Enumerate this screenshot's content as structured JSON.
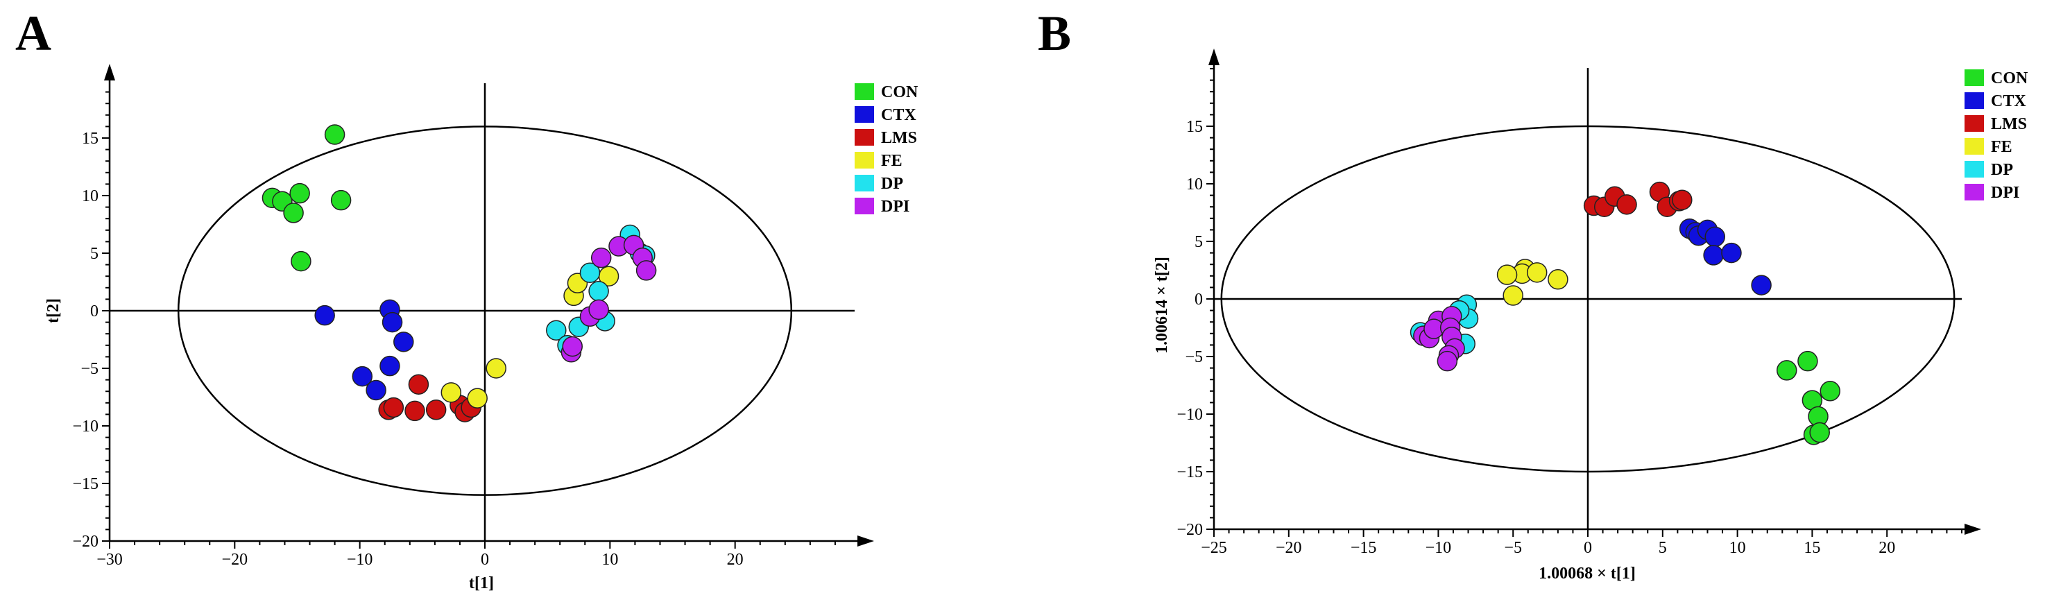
{
  "chart_data": [
    {
      "panel": "A",
      "type": "scatter",
      "title": "",
      "xlabel": "t[1]",
      "ylabel": "t[2]",
      "xlim": [
        -30,
        30
      ],
      "ylim": [
        -20,
        20
      ],
      "xticks": [
        -30,
        -20,
        -10,
        0,
        10,
        20
      ],
      "yticks": [
        -20,
        -15,
        -10,
        -5,
        0,
        5,
        10,
        15
      ],
      "ellipse": {
        "rx": 24.5,
        "ry": 16
      },
      "legend_position": "top-right",
      "series": [
        {
          "name": "CON",
          "color": "#22dd22",
          "points": [
            [
              -12,
              15.3
            ],
            [
              -17,
              9.8
            ],
            [
              -16.2,
              9.5
            ],
            [
              -14.8,
              10.2
            ],
            [
              -15.3,
              8.5
            ],
            [
              -11.5,
              9.6
            ],
            [
              -14.7,
              4.3
            ]
          ]
        },
        {
          "name": "CTX",
          "color": "#1010dd",
          "points": [
            [
              -12.8,
              -0.4
            ],
            [
              -7.6,
              0.1
            ],
            [
              -7.4,
              -1
            ],
            [
              -6.5,
              -2.7
            ],
            [
              -7.6,
              -4.8
            ],
            [
              -9.8,
              -5.7
            ],
            [
              -8.7,
              -6.9
            ]
          ]
        },
        {
          "name": "LMS",
          "color": "#cc1010",
          "points": [
            [
              -7.7,
              -8.6
            ],
            [
              -7.3,
              -8.4
            ],
            [
              -5.6,
              -8.7
            ],
            [
              -5.3,
              -6.4
            ],
            [
              -3.9,
              -8.6
            ],
            [
              -2,
              -8.2
            ],
            [
              -1.6,
              -8.8
            ],
            [
              -1.1,
              -8.4
            ]
          ]
        },
        {
          "name": "FE",
          "color": "#eeee22",
          "points": [
            [
              -2.7,
              -7.1
            ],
            [
              -0.6,
              -7.6
            ],
            [
              0.9,
              -5
            ],
            [
              7.1,
              1.3
            ],
            [
              7.4,
              2.4
            ],
            [
              9.9,
              3
            ]
          ]
        },
        {
          "name": "DP",
          "color": "#22e2ee",
          "points": [
            [
              5.7,
              -1.7
            ],
            [
              6.6,
              -3
            ],
            [
              7.5,
              -1.4
            ],
            [
              8.4,
              3.3
            ],
            [
              9.1,
              1.7
            ],
            [
              9.6,
              -0.9
            ],
            [
              11.6,
              6.6
            ],
            [
              12.4,
              5
            ],
            [
              12.8,
              4.8
            ]
          ]
        },
        {
          "name": "DPI",
          "color": "#bb22ee",
          "points": [
            [
              6.9,
              -3.6
            ],
            [
              7,
              -3.1
            ],
            [
              8.4,
              -0.5
            ],
            [
              9.1,
              0.1
            ],
            [
              9.3,
              4.6
            ],
            [
              10.7,
              5.6
            ],
            [
              11.9,
              5.7
            ],
            [
              12.6,
              4.6
            ],
            [
              12.9,
              3.5
            ]
          ]
        }
      ]
    },
    {
      "panel": "B",
      "type": "scatter",
      "title": "",
      "xlabel": "1.00068 × t[1]",
      "ylabel": "1.00614 × t[2]",
      "xlim": [
        -25,
        25
      ],
      "ylim": [
        -20,
        20
      ],
      "xticks": [
        -25,
        -20,
        -15,
        -10,
        -5,
        0,
        5,
        10,
        15,
        20
      ],
      "yticks": [
        -20,
        -15,
        -10,
        -5,
        0,
        5,
        10,
        15
      ],
      "ellipse": {
        "rx": 24.5,
        "ry": 15
      },
      "legend_position": "top-right",
      "series": [
        {
          "name": "CON",
          "color": "#22dd22",
          "points": [
            [
              13.3,
              -6.2
            ],
            [
              14.7,
              -5.4
            ],
            [
              15,
              -8.8
            ],
            [
              16.2,
              -8
            ],
            [
              15.4,
              -10.2
            ],
            [
              15.1,
              -11.8
            ],
            [
              15.5,
              -11.6
            ]
          ]
        },
        {
          "name": "CTX",
          "color": "#1010dd",
          "points": [
            [
              6.8,
              6.1
            ],
            [
              7.2,
              5.8
            ],
            [
              7.4,
              5.5
            ],
            [
              8,
              6
            ],
            [
              8.5,
              5.4
            ],
            [
              8.4,
              3.8
            ],
            [
              9.6,
              4
            ],
            [
              11.6,
              1.2
            ]
          ]
        },
        {
          "name": "LMS",
          "color": "#cc1010",
          "points": [
            [
              0.4,
              8.1
            ],
            [
              1.1,
              8
            ],
            [
              1.8,
              8.9
            ],
            [
              2.6,
              8.2
            ],
            [
              4.8,
              9.3
            ],
            [
              5.3,
              8
            ],
            [
              6.1,
              8.5
            ],
            [
              6.3,
              8.6
            ]
          ]
        },
        {
          "name": "FE",
          "color": "#eeee22",
          "points": [
            [
              -4.2,
              2.6
            ],
            [
              -4.4,
              2.2
            ],
            [
              -5.4,
              2.1
            ],
            [
              -3.4,
              2.3
            ],
            [
              -2,
              1.7
            ],
            [
              -5,
              0.3
            ]
          ]
        },
        {
          "name": "DP",
          "color": "#22e2ee",
          "points": [
            [
              -11.2,
              -2.9
            ],
            [
              -8.1,
              -0.5
            ],
            [
              -8,
              -1.7
            ],
            [
              -8.2,
              -3.9
            ],
            [
              -8.6,
              -1
            ]
          ]
        },
        {
          "name": "DPI",
          "color": "#bb22ee",
          "points": [
            [
              -11,
              -3.2
            ],
            [
              -10.6,
              -3.4
            ],
            [
              -10,
              -1.9
            ],
            [
              -9.1,
              -1.5
            ],
            [
              -10.3,
              -2.6
            ],
            [
              -9.2,
              -2.5
            ],
            [
              -9.1,
              -3.3
            ],
            [
              -8.9,
              -4.3
            ],
            [
              -9.3,
              -4.9
            ],
            [
              -9.4,
              -5.4
            ]
          ]
        }
      ]
    }
  ]
}
